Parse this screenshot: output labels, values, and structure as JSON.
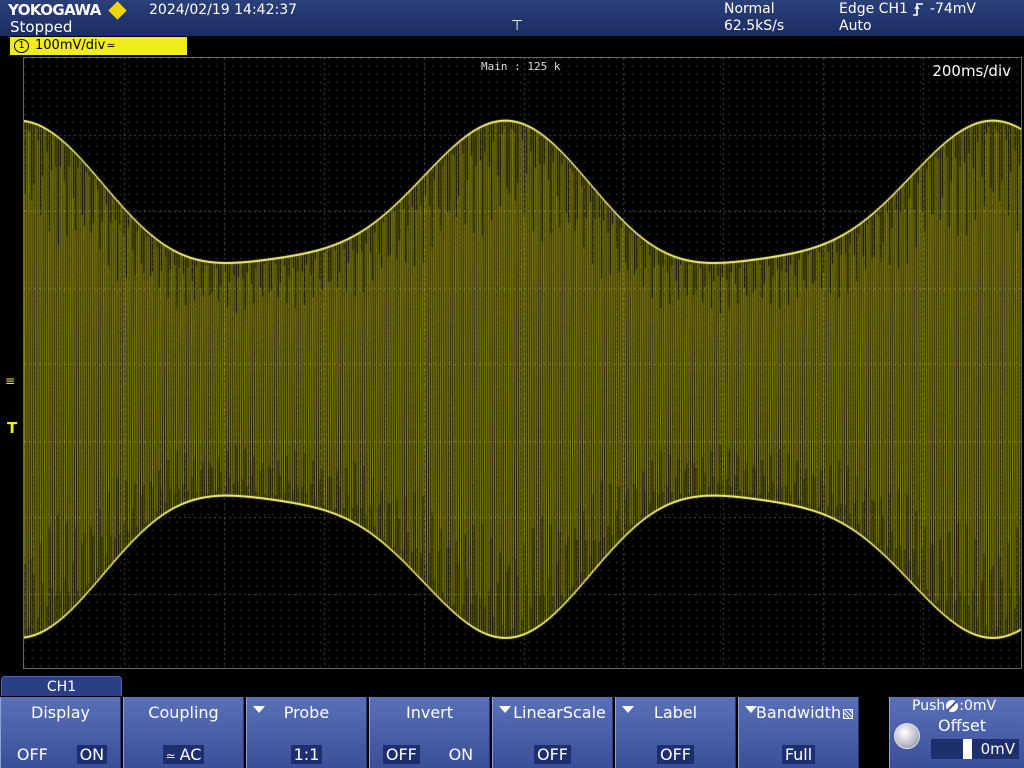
{
  "header": {
    "brand": "YOKOGAWA",
    "run_status": "Stopped",
    "datetime": "2024/02/19 14:42:37",
    "acquisition_mode": "Normal",
    "sample_rate": "62.5kS/s",
    "trigger_source": "Edge CH1",
    "trigger_level": "-74mV",
    "trigger_mode": "Auto",
    "trigger_position_icon": "trigger-position-icon"
  },
  "channel_tag": {
    "number": "1",
    "scale": "100mV/div",
    "coupling_icon": "ac-coupling-icon"
  },
  "screen": {
    "main_label": "Main : 125 k",
    "time_per_div": "200ms/div",
    "ground_marker_icon": "ground-icon",
    "trigger_level_marker": "T"
  },
  "menu": {
    "title": "CH1",
    "display": {
      "title": "Display",
      "off": "OFF",
      "on": "ON",
      "selected": "ON"
    },
    "coupling": {
      "title": "Coupling",
      "value": "AC"
    },
    "probe": {
      "title": "Probe",
      "value": "1:1"
    },
    "invert": {
      "title": "Invert",
      "off": "OFF",
      "on": "ON",
      "selected": "OFF"
    },
    "linear_scale": {
      "title": "LinearScale",
      "value": "OFF"
    },
    "label": {
      "title": "Label",
      "value": "OFF"
    },
    "bandwidth": {
      "title": "Bandwidth",
      "value": "Full"
    },
    "offset": {
      "push_label": "Push",
      "push_value": ":0mV",
      "title": "Offset",
      "value": "0mV"
    }
  },
  "colors": {
    "trace": "#f2ec1c",
    "grid": "#5a5a5a",
    "header_bg": "#1c2c60",
    "menu_bg": "#4a5fa8"
  }
}
